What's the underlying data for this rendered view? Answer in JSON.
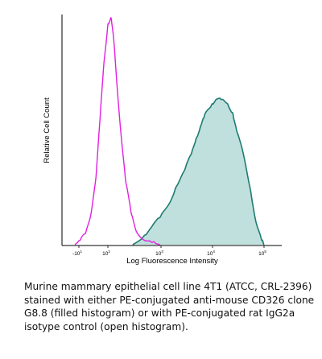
{
  "chart_data": {
    "type": "area",
    "xlabel": "Log Fluorescence Intensity",
    "ylabel": "Relative Cell Count",
    "x_scale": "log",
    "x_ticks": [
      {
        "value": -10,
        "base": "-10",
        "exp": "1"
      },
      {
        "value": 100,
        "base": "10",
        "exp": "2"
      },
      {
        "value": 1000,
        "base": "10",
        "exp": "3"
      },
      {
        "value": 10000,
        "base": "10",
        "exp": "4"
      },
      {
        "value": 100000,
        "base": "10",
        "exp": "5"
      }
    ],
    "grid": false,
    "series": [
      {
        "style": "filled",
        "color": "#1f7b72",
        "fill": "#bfe0dc",
        "x": [
          300,
          500,
          700,
          1000,
          1500,
          2000,
          3000,
          4000,
          5000,
          6000,
          7000,
          8000,
          10000,
          12000,
          15000,
          20000,
          25000,
          30000,
          40000,
          55000,
          70000,
          90000,
          100000
        ],
        "y": [
          0,
          4,
          8,
          12,
          18,
          25,
          33,
          40,
          47,
          52,
          56,
          59,
          62,
          64,
          64,
          62,
          58,
          50,
          40,
          24,
          10,
          2,
          0
        ]
      },
      {
        "style": "open",
        "color": "#e020e0",
        "x": [
          -25,
          -5,
          15,
          35,
          55,
          70,
          85,
          100,
          115,
          130,
          150,
          180,
          220,
          280,
          350,
          500,
          700,
          1000
        ],
        "y": [
          0,
          2,
          5,
          13,
          30,
          55,
          80,
          97,
          100,
          90,
          70,
          48,
          28,
          14,
          6,
          2,
          1,
          0
        ]
      }
    ]
  },
  "caption": {
    "lines": [
      "Murine mammary epithelial cell line 4T1 (ATCC, CRL-2396)",
      "stained with either PE-conjugated anti-mouse CD326 clone",
      "G8.8 (filled histogram) or with PE-conjugated rat IgG2a",
      "isotype control (open histogram)."
    ]
  }
}
